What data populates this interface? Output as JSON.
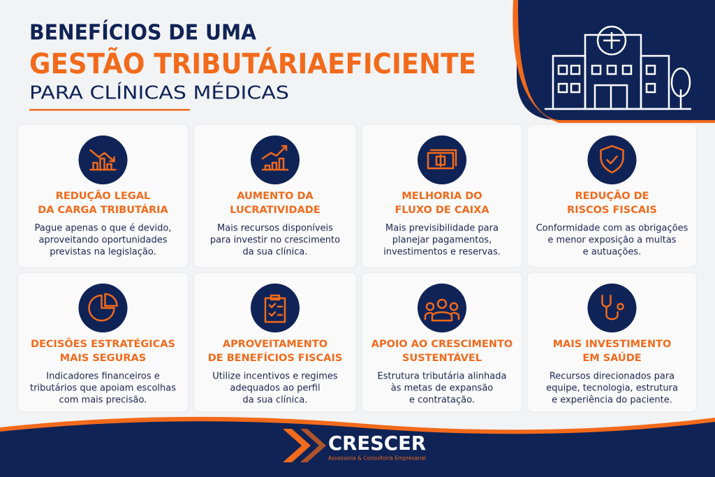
{
  "header": {
    "line1": "BENEFÍCIOS DE UMA",
    "line2": "GESTÃO TRIBUTÁRIAEFICIENTE",
    "line3": "PARA CLÍNICAS MÉDICAS"
  },
  "cards": [
    {
      "title": [
        "REDUÇÃO LEGAL",
        "DA CARGA TRIBUTÁRIA"
      ],
      "text": [
        "Pague apenas o que é devido,",
        "aproveitando oportunidades",
        "previstas na legislação."
      ]
    },
    {
      "title": [
        "AUMENTO DA",
        "LUCRATIVIDADE"
      ],
      "text": [
        "Mais recursos disponíveis",
        "para investir no crescimento",
        "da sua clínica."
      ]
    },
    {
      "title": [
        "MELHORIA DO",
        "FLUXO DE CAIXA"
      ],
      "text": [
        "Mais previsibilidade para",
        "planejar pagamentos,",
        "investimentos e reservas."
      ]
    },
    {
      "title": [
        "REDUÇÃO DE",
        "RISCOS FISCAIS"
      ],
      "text": [
        "Conformidade com as obrigações",
        "e menor exposição a multas",
        "e autuações."
      ]
    },
    {
      "title": [
        "DECISÕES ESTRATÉGICAS",
        "MAIS SEGURAS"
      ],
      "text": [
        "Indicadores financeiros e",
        "tributários que apoiam escolhas",
        "com mais precisão."
      ]
    },
    {
      "title": [
        "APROVEITAMENTO",
        "DE BENEFÍCIOS FISCAIS"
      ],
      "text": [
        "Utilize incentivos e regimes",
        "adequados ao perfil",
        "da sua clínica."
      ]
    },
    {
      "title": [
        "APOIO AO CRESCIMENTO",
        "SUSTENTÁVEL"
      ],
      "text": [
        "Estrutura tributária alinhada",
        "às metas de expansão",
        "e contratação."
      ]
    },
    {
      "title": [
        "MAIS INVESTIMENTO",
        "EM SAÚDE"
      ],
      "text": [
        "Recursos direcionados para",
        "equipe, tecnologia, estrutura",
        "e experiência do paciente."
      ]
    }
  ],
  "footer": {
    "brand": "CRESCER",
    "tagline": "Assessoria & Consultoria Empresarial"
  }
}
